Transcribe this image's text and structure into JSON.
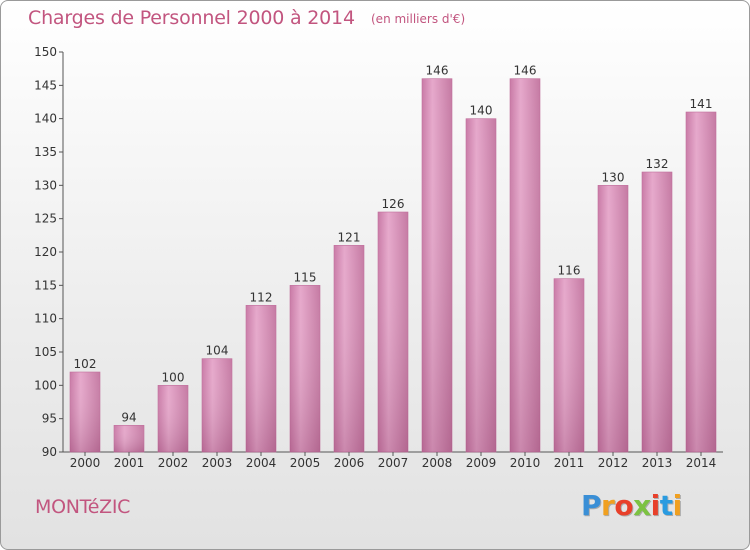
{
  "title": "Charges de Personnel 2000 à 2014",
  "subtitle": "(en milliers d'€)",
  "commune": "MONTéZIC",
  "logo": {
    "text": "Proxiti",
    "letter_colors": [
      "#3a8fd6",
      "#f0a020",
      "#e8402a",
      "#7cc242",
      "#e8402a",
      "#2a9be0",
      "#f0a020"
    ]
  },
  "colors": {
    "title": "#c2557f",
    "bar": "#d58ab4",
    "axis": "#555555"
  },
  "chart_data": {
    "type": "bar",
    "title": "Charges de Personnel 2000 à 2014",
    "subtitle": "(en milliers d'€)",
    "categories": [
      "2000",
      "2001",
      "2002",
      "2003",
      "2004",
      "2005",
      "2006",
      "2007",
      "2008",
      "2009",
      "2010",
      "2011",
      "2012",
      "2013",
      "2014"
    ],
    "values": [
      102,
      94,
      100,
      104,
      112,
      115,
      121,
      126,
      146,
      140,
      146,
      116,
      130,
      132,
      141
    ],
    "ylim": [
      90,
      150
    ],
    "yticks": [
      90,
      95,
      100,
      105,
      110,
      115,
      120,
      125,
      130,
      135,
      140,
      145,
      150
    ],
    "grid": false,
    "legend": "none"
  }
}
